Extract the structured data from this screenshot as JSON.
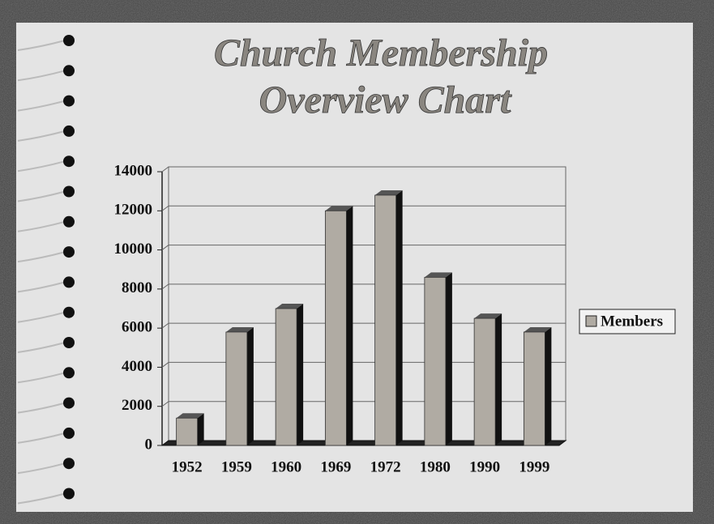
{
  "chart_data": {
    "type": "bar",
    "title": [
      "Church Membership",
      "Overview Chart"
    ],
    "categories": [
      "1952",
      "1959",
      "1960",
      "1969",
      "1972",
      "1980",
      "1990",
      "1999"
    ],
    "series": [
      {
        "name": "Members",
        "color": "#b0aba3",
        "values": [
          1400,
          5800,
          7000,
          12000,
          12800,
          8600,
          6500,
          5800
        ]
      }
    ],
    "ylim": [
      0,
      14000
    ],
    "yticks": [
      0,
      2000,
      4000,
      6000,
      8000,
      10000,
      12000,
      14000
    ],
    "grid": true,
    "legend": "right"
  }
}
